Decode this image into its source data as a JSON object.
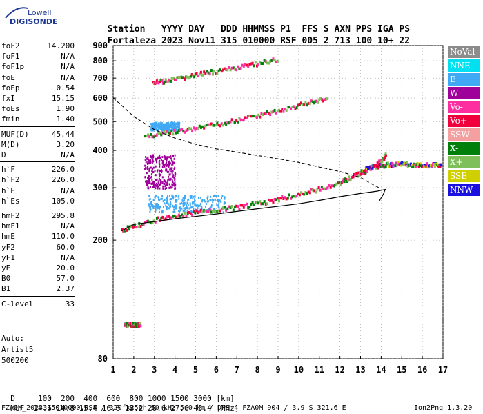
{
  "logo": {
    "line1": "Lowell",
    "line2": "DIGISONDE"
  },
  "header": {
    "labels": [
      "Station",
      "YYYY",
      "DAY",
      "DDD",
      "HHMMSS",
      "P1",
      "FFS",
      "S",
      "AXN",
      "PPS",
      "IGA",
      "PS"
    ],
    "values": [
      "Fortaleza",
      "2023",
      "Nov11",
      "315",
      "010000",
      "RSF",
      "005",
      "2",
      "713",
      "100",
      "10+",
      "22"
    ]
  },
  "params": [
    {
      "label": "foF2",
      "value": "14.200"
    },
    {
      "label": "foF1",
      "value": "N/A"
    },
    {
      "label": "foF1p",
      "value": "N/A"
    },
    {
      "label": "foE",
      "value": "N/A"
    },
    {
      "label": "foEp",
      "value": "0.54"
    },
    {
      "label": "fxI",
      "value": "15.15"
    },
    {
      "label": "foEs",
      "value": "1.90"
    },
    {
      "label": "fmin",
      "value": "1.40"
    },
    {
      "label": "MUF(D)",
      "value": "45.44"
    },
    {
      "label": "M(D)",
      "value": "3.20"
    },
    {
      "label": "D",
      "value": "N/A"
    },
    {
      "label": "h`F",
      "value": "226.0"
    },
    {
      "label": "h`F2",
      "value": "226.0"
    },
    {
      "label": "h`E",
      "value": "N/A"
    },
    {
      "label": "h`Es",
      "value": "105.0"
    },
    {
      "label": "hmF2",
      "value": "295.8"
    },
    {
      "label": "hmF1",
      "value": "N/A"
    },
    {
      "label": "hmE",
      "value": "110.0"
    },
    {
      "label": "yF2",
      "value": "60.0"
    },
    {
      "label": "yF1",
      "value": "N/A"
    },
    {
      "label": "yE",
      "value": "20.0"
    },
    {
      "label": "B0",
      "value": "57.0"
    },
    {
      "label": "B1",
      "value": "2.37"
    },
    {
      "label": "C-level",
      "value": "33"
    }
  ],
  "autoscale": {
    "line1": "Auto:",
    "line2": "Artist5",
    "line3": "500200"
  },
  "legend": [
    {
      "label": "NoVal",
      "color": "#8c8c8c"
    },
    {
      "label": "NNE",
      "color": "#00e0f0"
    },
    {
      "label": "E",
      "color": "#3fa9f5"
    },
    {
      "label": "W",
      "color": "#a0009a"
    },
    {
      "label": "Vo-",
      "color": "#ff2ea0"
    },
    {
      "label": "Vo+",
      "color": "#f0003c"
    },
    {
      "label": "SSW",
      "color": "#f4a0a0"
    },
    {
      "label": "X-",
      "color": "#00800a"
    },
    {
      "label": "X+",
      "color": "#7fbf5a"
    },
    {
      "label": "SSE",
      "color": "#d0d000"
    },
    {
      "label": "NNW",
      "color": "#1a10e0"
    }
  ],
  "footer": {
    "d_label": "D",
    "d_values": [
      "100",
      "200",
      "400",
      "600",
      "800",
      "1000",
      "1500",
      "3000"
    ],
    "d_unit": "[km]",
    "muf_label": "MUF",
    "muf_values": [
      "14.6",
      "14.8",
      "15.4",
      "16.6",
      "18.2",
      "20.6",
      "27.6",
      "45.4"
    ],
    "muf_unit": "[MHz]",
    "file_line": "FZA0M_2023315010000.RSF / 320fx256h 50 kHz 5.0 km / DPS-4 FZA0M 904 / 3.9 S 321.6 E",
    "version": "Ion2Png 1.3.20"
  },
  "chart_data": {
    "type": "scatter",
    "title": "",
    "xlabel": "",
    "ylabel": "",
    "xlim": [
      1,
      17
    ],
    "ylim": [
      80,
      900
    ],
    "xticks": [
      1,
      2,
      3,
      4,
      5,
      6,
      7,
      8,
      9,
      10,
      11,
      12,
      13,
      14,
      15,
      16,
      17
    ],
    "yticks": [
      80,
      200,
      300,
      400,
      500,
      600,
      700,
      800,
      900
    ],
    "grid": true,
    "y_scale": "log",
    "traces": [
      {
        "name": "F2 trace",
        "x": [
          1.4,
          2.0,
          3.0,
          4.0,
          5.0,
          6.0,
          7.0,
          8.0,
          9.0,
          10.0,
          11.0,
          12.0,
          12.6,
          13.2,
          13.6,
          14.0,
          14.2
        ],
        "y": [
          218,
          225,
          236,
          243,
          250,
          255,
          260,
          268,
          277,
          288,
          300,
          316,
          330,
          345,
          358,
          372,
          390
        ]
      },
      {
        "name": "F2 second hop",
        "x": [
          2.5,
          3.5,
          4.5,
          5.5,
          6.5,
          7.5,
          8.5,
          9.5,
          10.5,
          11.4
        ],
        "y": [
          452,
          462,
          472,
          487,
          502,
          520,
          540,
          560,
          585,
          605
        ]
      },
      {
        "name": "F2 third hop",
        "x": [
          2.9,
          3.5,
          4.2,
          5.0,
          6.0,
          7.0,
          8.0,
          9.0
        ],
        "y": [
          680,
          690,
          705,
          725,
          745,
          765,
          790,
          815
        ]
      },
      {
        "name": "F high-frequency spread",
        "x": [
          13.0,
          13.5,
          14.0,
          14.5,
          15.0,
          15.5,
          16.0,
          16.5,
          16.9
        ],
        "y": [
          345,
          355,
          360,
          362,
          365,
          360,
          362,
          360,
          360
        ]
      },
      {
        "name": "Es",
        "x": [
          1.5,
          1.7,
          1.9,
          2.1,
          2.3
        ],
        "y": [
          105,
          105,
          105,
          105,
          105
        ]
      }
    ],
    "profile_line": {
      "name": "Profile",
      "x": [
        1.4,
        2.0,
        4.0,
        6.0,
        8.0,
        10.0,
        11.0,
        12.0,
        13.0,
        13.8,
        14.2,
        14.1,
        13.9
      ],
      "y": [
        215,
        226,
        236,
        245,
        255,
        265,
        272,
        280,
        287,
        292,
        296,
        285,
        270
      ]
    },
    "dashed_line": {
      "name": "MUF curve",
      "x": [
        1.0,
        1.5,
        2.0,
        3.0,
        4.0,
        5.0,
        6.0,
        7.0,
        8.0,
        9.0,
        10.0,
        11.0,
        12.0,
        13.0,
        13.5,
        13.9
      ],
      "y": [
        600,
        560,
        520,
        470,
        440,
        420,
        405,
        395,
        385,
        375,
        365,
        352,
        340,
        325,
        310,
        300
      ]
    },
    "blobs": [
      {
        "name": "spread-F E",
        "x": [
          2.7,
          6.5
        ],
        "y": [
          250,
          285
        ],
        "color": "E"
      },
      {
        "name": "spread-F W",
        "x": [
          2.5,
          4.0
        ],
        "y": [
          300,
          390
        ],
        "color": "W"
      },
      {
        "name": "spread-F upper",
        "x": [
          2.8,
          4.2
        ],
        "y": [
          470,
          500
        ],
        "color": "E"
      }
    ]
  }
}
